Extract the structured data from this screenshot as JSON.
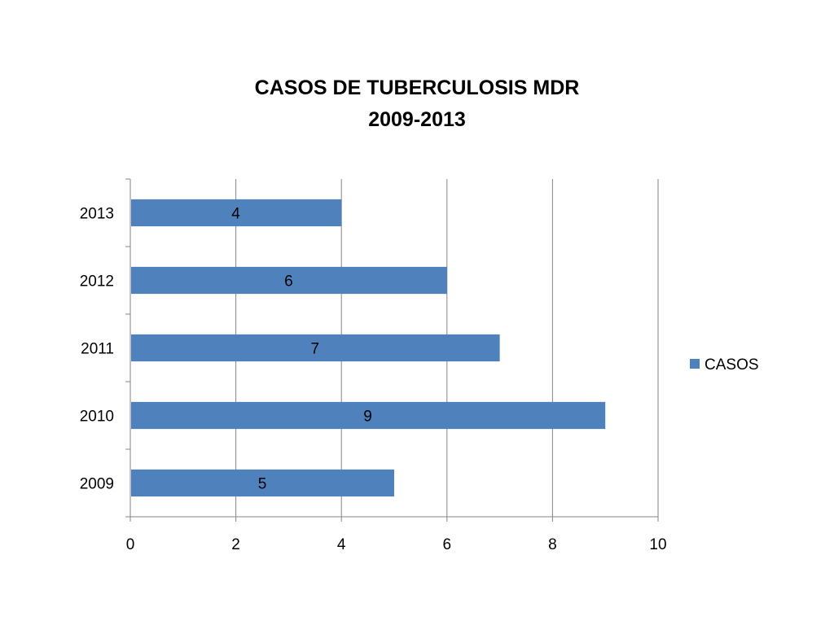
{
  "chart_data": {
    "type": "bar",
    "orientation": "horizontal",
    "title": [
      "CASOS DE TUBERCULOSIS MDR",
      "2009-2013"
    ],
    "categories": [
      "2009",
      "2010",
      "2011",
      "2012",
      "2013"
    ],
    "series": [
      {
        "name": "CASOS",
        "values": [
          5,
          9,
          7,
          6,
          4
        ],
        "color": "#4F81BD"
      }
    ],
    "xlim": [
      0,
      10
    ],
    "xticks": [
      "0",
      "2",
      "4",
      "6",
      "8",
      "10"
    ],
    "grid": "vertical",
    "legend": "right",
    "data_labels": [
      "5",
      "9",
      "7",
      "6",
      "4"
    ]
  }
}
